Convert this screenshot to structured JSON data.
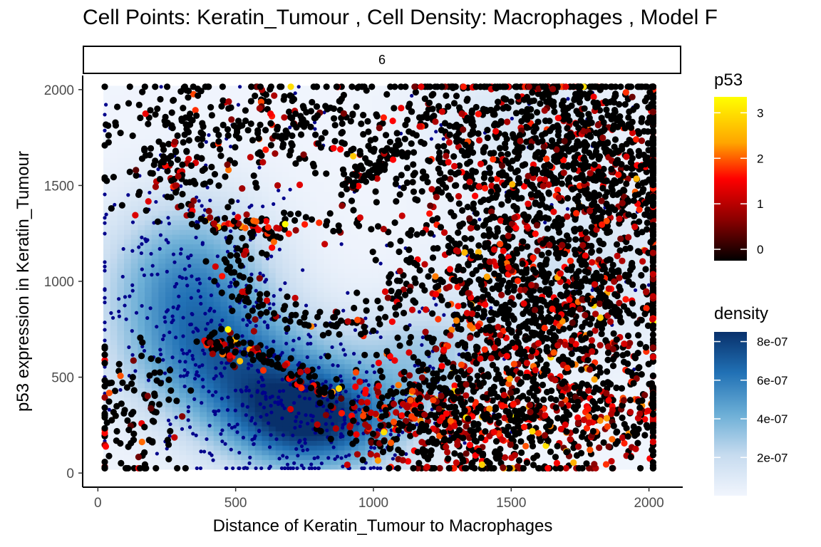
{
  "chart_data": {
    "type": "scatter",
    "title": "Cell Points: Keratin_Tumour , Cell Density: Macrophages , Model F",
    "facet_label": "6",
    "xlabel": "Distance of Keratin_Tumour to Macrophages",
    "ylabel": "p53 expression in Keratin_Tumour",
    "xlim": [
      -50,
      2120
    ],
    "ylim": [
      -70,
      2070
    ],
    "x_ticks": [
      0,
      500,
      1000,
      1500,
      2000
    ],
    "y_ticks": [
      0,
      500,
      1000,
      1500,
      2000
    ],
    "grid": false,
    "legend_position": "right",
    "density_extent": {
      "x": [
        20,
        2020
      ],
      "y": [
        20,
        2020
      ]
    },
    "density_peaks": [
      {
        "x": 780,
        "y": 270,
        "level": 8.2e-07,
        "sx": 230,
        "sy": 190
      },
      {
        "x": 330,
        "y": 980,
        "level": 5.5e-07,
        "sx": 210,
        "sy": 300
      },
      {
        "x": 520,
        "y": 560,
        "level": 4.8e-07,
        "sx": 260,
        "sy": 220
      },
      {
        "x": 1200,
        "y": 620,
        "level": 2.6e-07,
        "sx": 180,
        "sy": 200
      },
      {
        "x": 1700,
        "y": 1050,
        "level": 1.6e-07,
        "sx": 260,
        "sy": 300
      },
      {
        "x": 1550,
        "y": 1850,
        "level": 1.2e-07,
        "sx": 250,
        "sy": 200
      }
    ],
    "legends": {
      "p53": {
        "title": "p53",
        "ticks": [
          "0",
          "1",
          "2",
          "3"
        ],
        "tick_values": [
          0,
          1,
          2,
          3
        ],
        "range": [
          -0.25,
          3.35
        ],
        "colors": [
          "#000000",
          "#8b0000",
          "#ff0000",
          "#ffa500",
          "#ffff00"
        ]
      },
      "density": {
        "title": "density",
        "ticks": [
          "2e-07",
          "4e-07",
          "6e-07",
          "8e-07"
        ],
        "tick_values": [
          2e-07,
          4e-07,
          6e-07,
          8e-07
        ],
        "range": [
          2e-09,
          8.5e-07
        ],
        "colors": [
          "#f1f5fd",
          "#c6dbef",
          "#6baed6",
          "#2171b5",
          "#08306b"
        ]
      }
    },
    "series": [
      {
        "name": "Keratin_Tumour",
        "marker": "large-dot",
        "color_by": "p53"
      },
      {
        "name": "Macrophages",
        "marker": "small-dot",
        "color": "#00008b"
      }
    ]
  }
}
